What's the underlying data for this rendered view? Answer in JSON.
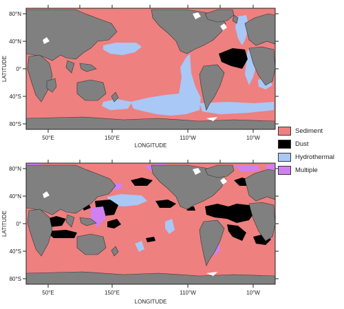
{
  "maps": [
    {
      "id": "top",
      "ylabel": "LATITUDE",
      "xlabel": "LONGITUDE",
      "lat_ticks": [
        "80°N",
        "40°N",
        "0°",
        "40°S",
        "80°S"
      ],
      "lon_ticks": [
        "50°E",
        "150°E",
        "110°W",
        "10°W"
      ]
    },
    {
      "id": "bottom",
      "ylabel": "LATITUDE",
      "xlabel": "LONGITUDE",
      "lat_ticks": [
        "80°N",
        "40°N",
        "0°",
        "40°S",
        "80°S"
      ],
      "lon_ticks": [
        "50°E",
        "150°E",
        "110°W",
        "10°W"
      ]
    }
  ],
  "legend": [
    {
      "label": "Sediment",
      "color": "#ee8080"
    },
    {
      "label": "Dust",
      "color": "#000000"
    },
    {
      "label": "Hydrothermal",
      "color": "#a9c8f5"
    },
    {
      "label": "Multiple",
      "color": "#d080f0"
    }
  ],
  "colors": {
    "land": "#808080",
    "sediment": "#ee8080",
    "dust": "#000000",
    "hydrothermal": "#a9c8f5",
    "multiple": "#d080f0",
    "ice": "#ffffff"
  }
}
